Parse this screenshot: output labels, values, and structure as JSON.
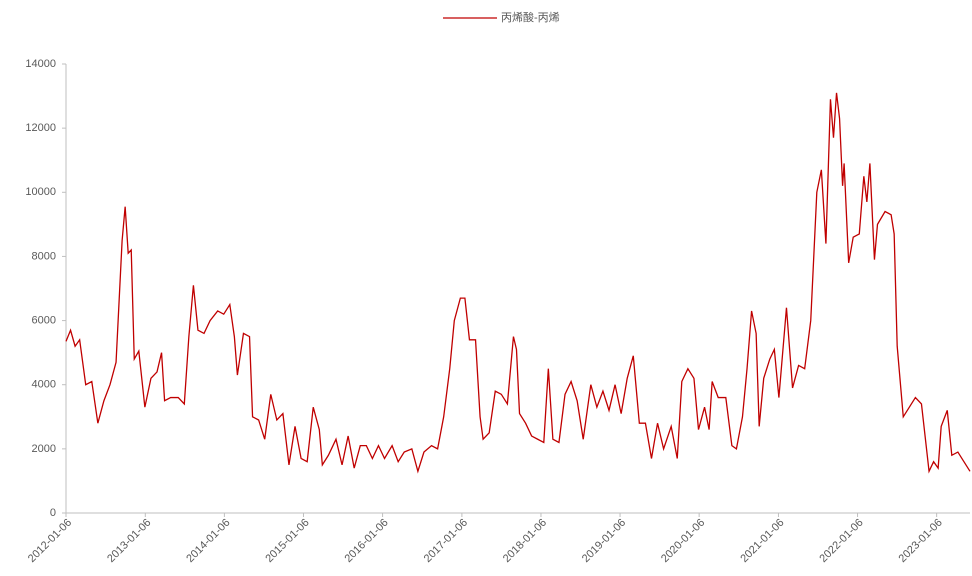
{
  "chart_data": {
    "type": "line",
    "series": [
      {
        "name": "丙烯酸-丙烯",
        "color": "#c00000",
        "x": [
          "2012-01-06",
          "2012-01-27",
          "2012-02-17",
          "2012-03-09",
          "2012-04-06",
          "2012-05-04",
          "2012-06-01",
          "2012-06-29",
          "2012-07-27",
          "2012-08-24",
          "2012-09-21",
          "2012-10-05",
          "2012-10-19",
          "2012-11-02",
          "2012-11-16",
          "2012-12-07",
          "2013-01-04",
          "2013-02-01",
          "2013-03-01",
          "2013-03-22",
          "2013-04-05",
          "2013-05-03",
          "2013-06-07",
          "2013-07-05",
          "2013-07-26",
          "2013-08-16",
          "2013-09-06",
          "2013-10-04",
          "2013-11-01",
          "2013-12-06",
          "2014-01-03",
          "2014-01-31",
          "2014-02-21",
          "2014-03-07",
          "2014-04-04",
          "2014-05-02",
          "2014-05-16",
          "2014-06-13",
          "2014-07-11",
          "2014-08-08",
          "2014-09-05",
          "2014-10-03",
          "2014-10-31",
          "2014-11-28",
          "2014-12-26",
          "2015-01-23",
          "2015-02-20",
          "2015-03-20",
          "2015-04-03",
          "2015-05-01",
          "2015-06-05",
          "2015-07-03",
          "2015-07-31",
          "2015-08-28",
          "2015-09-25",
          "2015-10-23",
          "2015-11-20",
          "2015-12-18",
          "2016-01-15",
          "2016-02-19",
          "2016-03-18",
          "2016-04-15",
          "2016-05-20",
          "2016-06-17",
          "2016-07-15",
          "2016-08-19",
          "2016-09-16",
          "2016-10-14",
          "2016-11-11",
          "2016-12-02",
          "2016-12-30",
          "2017-01-20",
          "2017-02-10",
          "2017-03-10",
          "2017-03-31",
          "2017-04-14",
          "2017-05-12",
          "2017-06-09",
          "2017-07-07",
          "2017-08-04",
          "2017-09-01",
          "2017-09-15",
          "2017-09-29",
          "2017-10-27",
          "2017-11-24",
          "2017-12-22",
          "2018-01-19",
          "2018-02-09",
          "2018-03-02",
          "2018-03-30",
          "2018-04-27",
          "2018-05-25",
          "2018-06-22",
          "2018-07-20",
          "2018-08-24",
          "2018-09-21",
          "2018-10-19",
          "2018-11-16",
          "2018-12-14",
          "2019-01-11",
          "2019-02-08",
          "2019-03-08",
          "2019-04-05",
          "2019-05-03",
          "2019-05-31",
          "2019-06-28",
          "2019-07-26",
          "2019-08-30",
          "2019-09-27",
          "2019-10-18",
          "2019-11-15",
          "2019-12-13",
          "2020-01-03",
          "2020-01-31",
          "2020-02-21",
          "2020-03-06",
          "2020-04-03",
          "2020-05-08",
          "2020-06-05",
          "2020-06-26",
          "2020-07-24",
          "2020-08-14",
          "2020-09-04",
          "2020-09-25",
          "2020-10-09",
          "2020-10-30",
          "2020-11-27",
          "2020-12-18",
          "2021-01-08",
          "2021-02-12",
          "2021-03-12",
          "2021-04-09",
          "2021-05-07",
          "2021-06-04",
          "2021-07-02",
          "2021-07-23",
          "2021-08-13",
          "2021-09-03",
          "2021-09-17",
          "2021-10-01",
          "2021-10-15",
          "2021-10-29",
          "2021-11-05",
          "2021-11-26",
          "2021-12-17",
          "2022-01-14",
          "2022-02-04",
          "2022-02-18",
          "2022-03-04",
          "2022-03-25",
          "2022-04-08",
          "2022-05-13",
          "2022-06-10",
          "2022-06-24",
          "2022-07-08",
          "2022-08-05",
          "2022-09-02",
          "2022-09-30",
          "2022-10-28",
          "2022-12-02",
          "2022-12-23",
          "2023-01-13",
          "2023-01-27",
          "2023-02-24",
          "2023-03-17",
          "2023-04-14",
          "2023-05-12",
          "2023-06-09"
        ],
        "values": [
          5350,
          5700,
          5200,
          5400,
          4000,
          4100,
          2800,
          3500,
          4000,
          4700,
          8500,
          9550,
          8100,
          8200,
          4800,
          5050,
          3300,
          4200,
          4400,
          5000,
          3500,
          3600,
          3600,
          3400,
          5500,
          7100,
          5700,
          5600,
          6000,
          6300,
          6200,
          6500,
          5500,
          4300,
          5600,
          5500,
          3000,
          2900,
          2300,
          3700,
          2900,
          3100,
          1500,
          2700,
          1700,
          1600,
          3300,
          2600,
          1500,
          1800,
          2300,
          1500,
          2400,
          1400,
          2100,
          2100,
          1700,
          2100,
          1700,
          2100,
          1600,
          1900,
          2000,
          1300,
          1900,
          2100,
          2000,
          3000,
          4500,
          6000,
          6700,
          6700,
          5400,
          5400,
          3000,
          2300,
          2500,
          3800,
          3700,
          3400,
          5500,
          5100,
          3100,
          2800,
          2400,
          2300,
          2200,
          4500,
          2300,
          2200,
          3700,
          4100,
          3500,
          2300,
          4000,
          3300,
          3800,
          3200,
          4000,
          3100,
          4200,
          4900,
          2800,
          2800,
          1700,
          2800,
          2000,
          2700,
          1700,
          4100,
          4500,
          4200,
          2600,
          3300,
          2600,
          4100,
          3600,
          3600,
          2100,
          2000,
          3000,
          4500,
          6300,
          5600,
          2700,
          4200,
          4800,
          5100,
          3600,
          6400,
          3900,
          4600,
          4500,
          6000,
          10000,
          10700,
          8400,
          12900,
          11700,
          13100,
          12300,
          10200,
          10900,
          7800,
          8600,
          8700,
          10500,
          9700,
          10900,
          7900,
          9000,
          9400,
          9300,
          8700,
          5200,
          3000,
          3300,
          3600,
          3400,
          1300,
          1600,
          1400,
          2700,
          3200,
          1800,
          1900,
          1600,
          1300
        ]
      }
    ],
    "xlim": [
      "2012-01-06",
      "2023-06-09"
    ],
    "xticks": [
      "2012-01-06",
      "2013-01-06",
      "2014-01-06",
      "2015-01-06",
      "2016-01-06",
      "2017-01-06",
      "2018-01-06",
      "2019-01-06",
      "2020-01-06",
      "2021-01-06",
      "2022-01-06",
      "2023-01-06"
    ],
    "ylim": [
      0,
      14000
    ],
    "yticks": [
      0,
      2000,
      4000,
      6000,
      8000,
      10000,
      12000,
      14000
    ],
    "legend": "top"
  }
}
